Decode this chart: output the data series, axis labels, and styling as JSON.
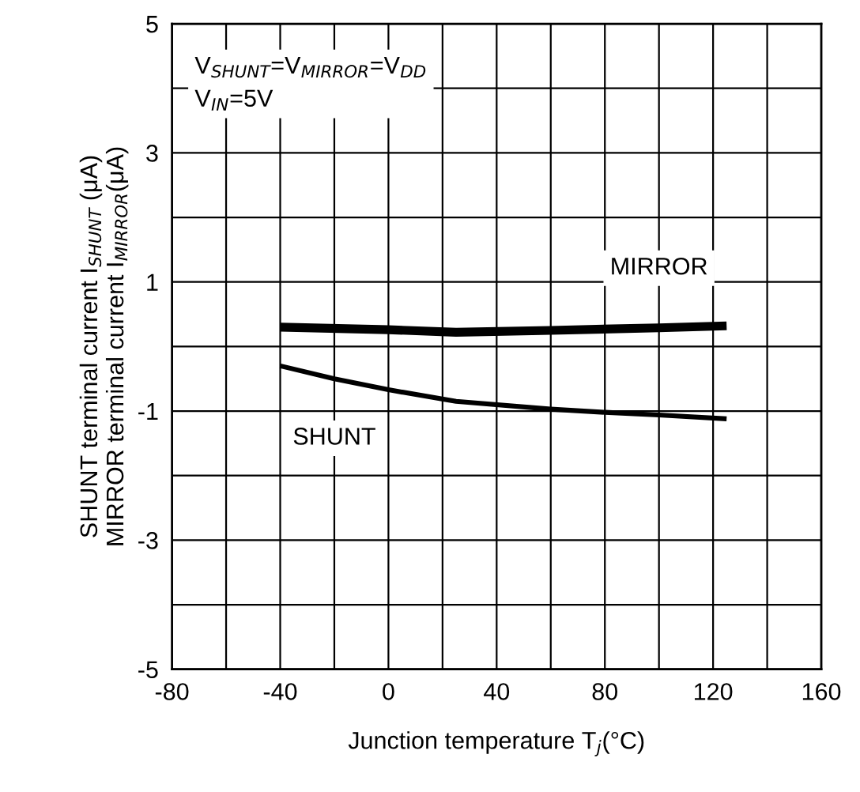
{
  "chart_data": {
    "type": "line",
    "xlabel": "Junction temperature T$_{j}$(°C)",
    "ylabel": "SHUNT terminal current I$_{SHUNT}$ (μA)\nMIRROR terminal current I$_{MIRROR}$(μA)",
    "series": [
      {
        "name": "MIRROR",
        "color": "#000000",
        "x": [
          -40,
          0,
          25,
          60,
          100,
          125
        ],
        "values": [
          0.3,
          0.26,
          0.22,
          0.25,
          0.29,
          0.32
        ]
      },
      {
        "name": "SHUNT",
        "color": "#000000",
        "x": [
          -40,
          -20,
          0,
          25,
          60,
          80,
          100,
          125
        ],
        "values": [
          -0.3,
          -0.5,
          -0.67,
          -0.85,
          -0.97,
          -1.02,
          -1.06,
          -1.12
        ]
      }
    ],
    "xlim": [
      -80,
      160
    ],
    "xticks": [
      -80,
      {
        "value": -60,
        "label": null
      },
      -40,
      {
        "value": -20,
        "label": null
      },
      0,
      {
        "value": 20,
        "label": null
      },
      40,
      {
        "value": 60,
        "label": null
      },
      80,
      {
        "value": 100,
        "label": null
      },
      120,
      {
        "value": 140,
        "label": null
      },
      160
    ],
    "ylim": [
      -5,
      5
    ],
    "yticks": [
      -5,
      {
        "value": -4,
        "label": null
      },
      -3,
      {
        "value": -2,
        "label": null
      },
      -1,
      {
        "value": 0,
        "label": null
      },
      1,
      {
        "value": 2,
        "label": null
      },
      3,
      {
        "value": 4,
        "label": null
      },
      5
    ],
    "annotations": [
      "V$_{SHUNT}$=V$_{MIRROR}$=V$_{DD}$\nV$_{IN}$=5V"
    ],
    "grid": true,
    "legend": false,
    "marker": "none",
    "line_style": "solid"
  }
}
